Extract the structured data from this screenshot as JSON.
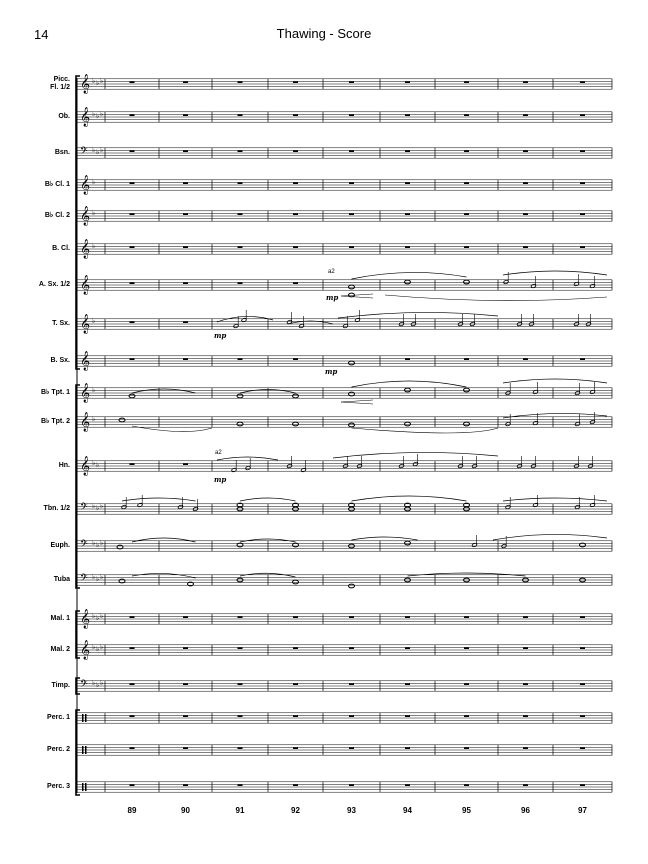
{
  "header": {
    "page_number": "14",
    "title": "Thawing - Score"
  },
  "staves": [
    {
      "label": "Picc.\nFl. 1/2",
      "clef": "treble",
      "key_flats": 3
    },
    {
      "label": "Ob.",
      "clef": "treble",
      "key_flats": 3
    },
    {
      "label": "Bsn.",
      "clef": "bass",
      "key_flats": 3
    },
    {
      "label": "B♭ Cl. 1",
      "clef": "treble",
      "key_flats": 1
    },
    {
      "label": "B♭ Cl. 2",
      "clef": "treble",
      "key_flats": 1
    },
    {
      "label": "B. Cl.",
      "clef": "treble",
      "key_flats": 1
    },
    {
      "label": "A. Sx. 1/2",
      "clef": "treble",
      "key_flats": 0
    },
    {
      "label": "T. Sx.",
      "clef": "treble",
      "key_flats": 1
    },
    {
      "label": "B. Sx.",
      "clef": "treble",
      "key_flats": 0
    },
    {
      "label": "B♭ Tpt. 1",
      "clef": "treble",
      "key_flats": 1
    },
    {
      "label": "B♭ Tpt. 2",
      "clef": "treble",
      "key_flats": 1
    },
    {
      "label": "Hn.",
      "clef": "treble",
      "key_flats": 2
    },
    {
      "label": "Tbn. 1/2",
      "clef": "bass",
      "key_flats": 3
    },
    {
      "label": "Euph.",
      "clef": "bass",
      "key_flats": 3
    },
    {
      "label": "Tuba",
      "clef": "bass",
      "key_flats": 3
    },
    {
      "label": "Mal. 1",
      "clef": "treble",
      "key_flats": 3
    },
    {
      "label": "Mal. 2",
      "clef": "treble",
      "key_flats": 3
    },
    {
      "label": "Timp.",
      "clef": "bass",
      "key_flats": 3
    },
    {
      "label": "Perc. 1",
      "clef": "percussion",
      "key_flats": 0
    },
    {
      "label": "Perc. 2",
      "clef": "percussion",
      "key_flats": 0
    },
    {
      "label": "Perc. 3",
      "clef": "percussion",
      "key_flats": 0
    }
  ],
  "measures": [
    "89",
    "90",
    "91",
    "92",
    "93",
    "94",
    "95",
    "96",
    "97"
  ],
  "markings": {
    "dynamic": "mp",
    "a2": "a2"
  }
}
